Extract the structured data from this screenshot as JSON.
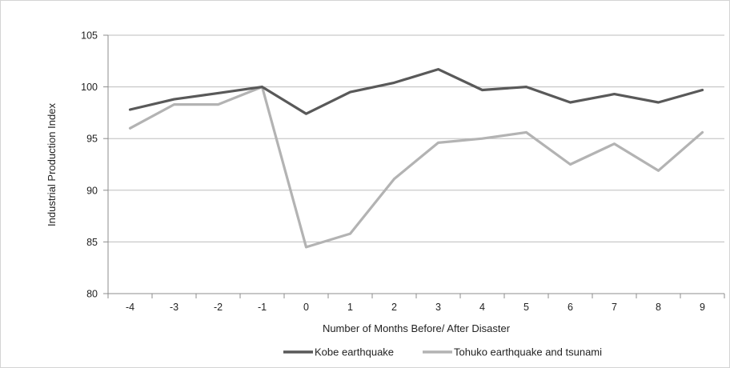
{
  "chart_data": {
    "type": "line",
    "xlabel": "Number of Months Before/ After Disaster",
    "ylabel": "Industrial Production Index",
    "ylim": [
      80,
      105
    ],
    "yticks": [
      80,
      85,
      90,
      95,
      100,
      105
    ],
    "categories": [
      "-4",
      "-3",
      "-2",
      "-1",
      "0",
      "1",
      "2",
      "3",
      "4",
      "5",
      "6",
      "7",
      "8",
      "9"
    ],
    "grid": "horizontal",
    "legend_position": "bottom",
    "series": [
      {
        "name": "Kobe earthquake",
        "color": "#595959",
        "values": [
          97.8,
          98.8,
          99.4,
          100.0,
          97.4,
          99.5,
          100.4,
          101.7,
          99.7,
          100.0,
          98.5,
          99.3,
          98.5,
          99.7
        ]
      },
      {
        "name": "Tohuko earthquake and tsunami",
        "color": "#b3b3b3",
        "values": [
          96.0,
          98.3,
          98.3,
          100.0,
          84.5,
          85.8,
          91.1,
          94.6,
          95.0,
          95.6,
          92.5,
          94.5,
          91.9,
          95.6
        ]
      }
    ]
  }
}
